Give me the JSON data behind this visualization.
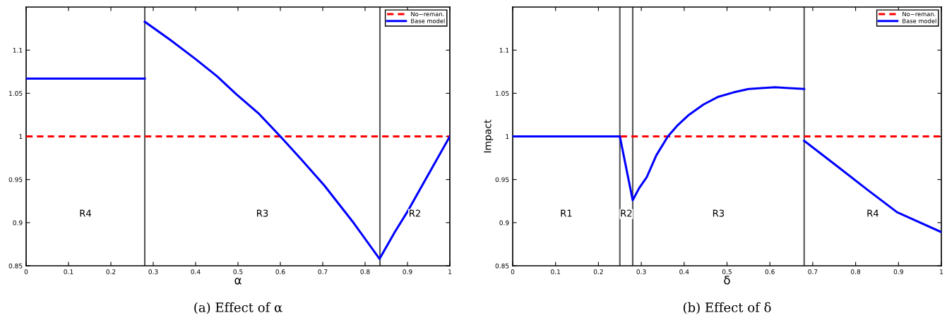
{
  "chart_data": [
    {
      "type": "line",
      "title": "(a) Effect of α",
      "xlabel": "α",
      "xlim": [
        0,
        1
      ],
      "ylim": [
        0.85,
        1.15
      ],
      "xticks": [
        0,
        0.1,
        0.2,
        0.3,
        0.4,
        0.5,
        0.6,
        0.7,
        0.8,
        0.9,
        1
      ],
      "yticks": [
        0.85,
        0.9,
        0.95,
        1,
        1.05,
        1.1
      ],
      "legend": "top right",
      "grid": false,
      "series": [
        {
          "name": "No−reman.",
          "color": "#ff0000",
          "line_style": "dashed",
          "x": [
            0,
            1
          ],
          "values": [
            1,
            1
          ]
        },
        {
          "name": "Base model",
          "color": "#0000ff",
          "line_style": "solid",
          "x": [
            0,
            0.28
          ],
          "values": [
            1.067,
            1.067
          ]
        },
        {
          "color": "#0000ff",
          "line_style": "solid",
          "x": [
            0.28,
            0.34,
            0.399,
            0.45,
            0.496,
            0.55,
            0.6,
            0.65,
            0.704,
            0.774,
            0.834,
            0.87,
            0.899,
            0.954,
            1.0
          ],
          "values": [
            1.133,
            1.112,
            1.09,
            1.07,
            1.049,
            1.026,
            1.0,
            0.973,
            0.943,
            0.899,
            0.858,
            0.889,
            0.912,
            0.96,
            1.0
          ]
        }
      ],
      "ref_lines": [
        {
          "axis": "x",
          "value": 0.28,
          "color": "#555555"
        },
        {
          "axis": "x",
          "value": 0.835,
          "color": "#555555"
        }
      ],
      "annotations": [
        "R4",
        "R3",
        "R2"
      ]
    },
    {
      "type": "line",
      "title": "(b) Effect of δ",
      "xlabel": "δ",
      "ylabel": "Impact",
      "xlim": [
        0,
        1
      ],
      "ylim": [
        0.85,
        1.15
      ],
      "xticks": [
        0,
        0.1,
        0.2,
        0.3,
        0.4,
        0.5,
        0.6,
        0.7,
        0.8,
        0.9,
        1
      ],
      "yticks": [
        0.85,
        0.9,
        0.95,
        1,
        1.05,
        1.1
      ],
      "legend": "top right",
      "grid": false,
      "series": [
        {
          "name": "No−reman.",
          "color": "#ff0000",
          "line_style": "dashed",
          "x": [
            0,
            1
          ],
          "values": [
            1,
            1
          ]
        },
        {
          "name": "Base model",
          "color": "#0000ff",
          "line_style": "solid",
          "x": [
            0,
            0.25,
            0.28,
            0.295,
            0.313,
            0.335,
            0.362,
            0.385,
            0.411,
            0.445,
            0.48,
            0.515,
            0.55,
            0.58,
            0.612,
            0.645,
            0.68
          ],
          "values": [
            1.0,
            1.0,
            0.926,
            0.94,
            0.953,
            0.978,
            1.0,
            1.013,
            1.025,
            1.037,
            1.046,
            1.051,
            1.055,
            1.056,
            1.057,
            1.056,
            1.055
          ]
        },
        {
          "color": "#0000ff",
          "line_style": "solid",
          "x": [
            0.68,
            0.758,
            0.828,
            0.897,
            1.0
          ],
          "values": [
            0.995,
            0.965,
            0.938,
            0.912,
            0.889
          ]
        }
      ],
      "ref_lines": [
        {
          "axis": "x",
          "value": 0.25,
          "color": "#555555"
        },
        {
          "axis": "x",
          "value": 0.28,
          "color": "#555555"
        },
        {
          "axis": "x",
          "value": 0.68,
          "color": "#555555"
        }
      ],
      "annotations": [
        "R1",
        "R2",
        "R3",
        "R4"
      ]
    }
  ]
}
